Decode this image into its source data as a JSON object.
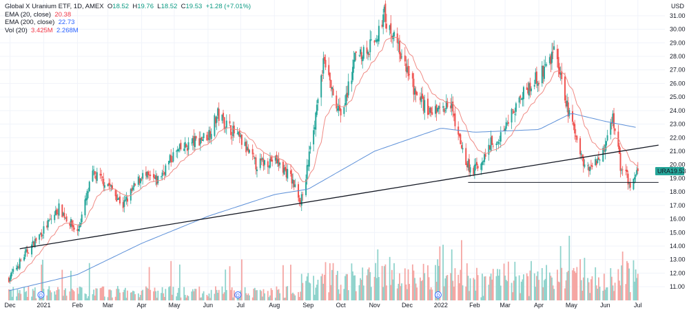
{
  "legend": {
    "symbol": "Global X Uranium ETF, 1D, AMEX",
    "open_label": "O",
    "open": "18.52",
    "high_label": "H",
    "high": "19.76",
    "low_label": "L",
    "low": "18.52",
    "close_label": "C",
    "close": "19.53",
    "change": "+1.28 (+7.01%)",
    "ema20_label": "EMA (20, close)",
    "ema20_value": "20.38",
    "ema200_label": "EMA (200, close)",
    "ema200_value": "22.73",
    "vol_label": "Vol (20)",
    "vol_value": "3.425M",
    "vol_ma_value": "2.268M"
  },
  "colors": {
    "up": "#26a69a",
    "down": "#ef5350",
    "vol_up": "#8fd3cc",
    "vol_down": "#f5a6a3",
    "ema20": "#f08a84",
    "ema200": "#5b8fd8",
    "trendline": "#131722",
    "price_label_bg": "#26a69a",
    "grid": "#f0f3fa"
  },
  "chart_data": {
    "type": "candlestick",
    "currency": "USD",
    "y_ticks": [
      "31.00",
      "30.00",
      "29.00",
      "28.00",
      "27.00",
      "26.00",
      "25.00",
      "24.00",
      "23.00",
      "22.00",
      "21.00",
      "20.00",
      "19.00",
      "18.00",
      "17.00",
      "16.00",
      "15.00",
      "14.00",
      "13.00",
      "12.00",
      "11.00"
    ],
    "ylim": [
      10.6,
      31.6
    ],
    "x_ticks": [
      "Dec",
      "2021",
      "Feb",
      "Mar",
      "Apr",
      "May",
      "Jun",
      "Jul",
      "Aug",
      "Sep",
      "Oct",
      "Nov",
      "Dec",
      "2022",
      "Feb",
      "Mar",
      "Apr",
      "May",
      "Jun",
      "Jul"
    ],
    "last_price": {
      "symbol": "URA",
      "value": "19.53"
    },
    "dividend_marker": "D",
    "dividend_markers": [
      "2021-01-01",
      "2021-07-01",
      "2022-01-01"
    ],
    "ema20_last": 20.38,
    "ema200_last": 22.73,
    "price_path": [
      [
        "2020-11-30",
        11.6
      ],
      [
        "2020-12-15",
        13.4
      ],
      [
        "2021-01-01",
        15.2
      ],
      [
        "2021-01-15",
        16.8
      ],
      [
        "2021-02-01",
        15.0
      ],
      [
        "2021-02-15",
        19.3
      ],
      [
        "2021-03-01",
        18.6
      ],
      [
        "2021-03-15",
        17.0
      ],
      [
        "2021-04-01",
        19.2
      ],
      [
        "2021-04-15",
        18.8
      ],
      [
        "2021-05-01",
        20.8
      ],
      [
        "2021-05-15",
        21.5
      ],
      [
        "2021-06-01",
        22.2
      ],
      [
        "2021-06-10",
        23.7
      ],
      [
        "2021-07-01",
        21.8
      ],
      [
        "2021-07-15",
        20.0
      ],
      [
        "2021-08-01",
        20.4
      ],
      [
        "2021-08-15",
        19.2
      ],
      [
        "2021-08-25",
        17.4
      ],
      [
        "2021-09-01",
        20.0
      ],
      [
        "2021-09-15",
        27.5
      ],
      [
        "2021-10-01",
        23.5
      ],
      [
        "2021-10-15",
        28.0
      ],
      [
        "2021-11-01",
        29.0
      ],
      [
        "2021-11-10",
        31.0
      ],
      [
        "2021-11-25",
        28.0
      ],
      [
        "2021-12-10",
        25.0
      ],
      [
        "2021-12-25",
        23.8
      ],
      [
        "2022-01-10",
        24.5
      ],
      [
        "2022-01-20",
        21.0
      ],
      [
        "2022-01-30",
        19.3
      ],
      [
        "2022-02-15",
        21.5
      ],
      [
        "2022-03-01",
        22.5
      ],
      [
        "2022-03-15",
        25.0
      ],
      [
        "2022-04-01",
        26.5
      ],
      [
        "2022-04-15",
        28.2
      ],
      [
        "2022-05-01",
        23.0
      ],
      [
        "2022-05-15",
        19.5
      ],
      [
        "2022-05-30",
        21.0
      ],
      [
        "2022-06-08",
        23.5
      ],
      [
        "2022-06-15",
        20.0
      ],
      [
        "2022-06-25",
        18.5
      ],
      [
        "2022-07-01",
        19.53
      ]
    ],
    "ema200_path": [
      [
        "2020-11-30",
        10.7
      ],
      [
        "2021-02-01",
        11.9
      ],
      [
        "2021-04-01",
        14.2
      ],
      [
        "2021-06-01",
        16.2
      ],
      [
        "2021-08-01",
        17.8
      ],
      [
        "2021-09-01",
        18.2
      ],
      [
        "2021-11-01",
        21.0
      ],
      [
        "2022-01-01",
        22.7
      ],
      [
        "2022-02-01",
        22.4
      ],
      [
        "2022-04-01",
        22.6
      ],
      [
        "2022-05-01",
        23.8
      ],
      [
        "2022-06-01",
        23.2
      ],
      [
        "2022-07-01",
        22.73
      ]
    ],
    "trendline": [
      [
        "2020-12-10",
        13.8
      ],
      [
        "2022-07-01",
        21.45
      ]
    ],
    "support_line": [
      [
        "2022-01-26",
        18.7
      ],
      [
        "2022-07-01",
        18.7
      ]
    ]
  }
}
